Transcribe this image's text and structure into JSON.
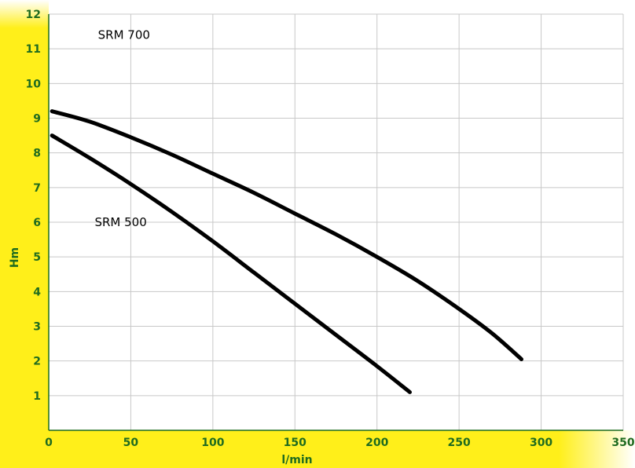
{
  "chart_data": {
    "type": "line",
    "xlabel": "l/min",
    "ylabel": "Hm",
    "xlim": [
      0,
      350
    ],
    "ylim": [
      0,
      12
    ],
    "xticks": [
      0,
      50,
      100,
      150,
      200,
      250,
      300,
      350
    ],
    "yticks": [
      1,
      2,
      3,
      4,
      5,
      6,
      7,
      8,
      9,
      10,
      11,
      12
    ],
    "grid": true,
    "series": [
      {
        "name": "SRM 700",
        "x": [
          2,
          25,
          50,
          75,
          100,
          125,
          150,
          175,
          200,
          225,
          250,
          270,
          288
        ],
        "y": [
          9.2,
          8.9,
          8.45,
          7.95,
          7.4,
          6.85,
          6.25,
          5.65,
          5.0,
          4.3,
          3.5,
          2.8,
          2.05
        ]
      },
      {
        "name": "SRM 500",
        "x": [
          2,
          25,
          50,
          75,
          100,
          125,
          150,
          175,
          200,
          220
        ],
        "y": [
          8.5,
          7.85,
          7.1,
          6.3,
          5.45,
          4.55,
          3.65,
          2.75,
          1.85,
          1.1
        ]
      }
    ],
    "series_label_anchor": [
      {
        "x": 30,
        "y": 11.4
      },
      {
        "x": 28,
        "y": 6.0
      }
    ],
    "colors": {
      "axis_band": "#ffef1a",
      "tick_text": "#1f6b1f",
      "axis_line": "#1f6b1f",
      "grid": "#c8c8c8",
      "curve": "#000000"
    }
  }
}
